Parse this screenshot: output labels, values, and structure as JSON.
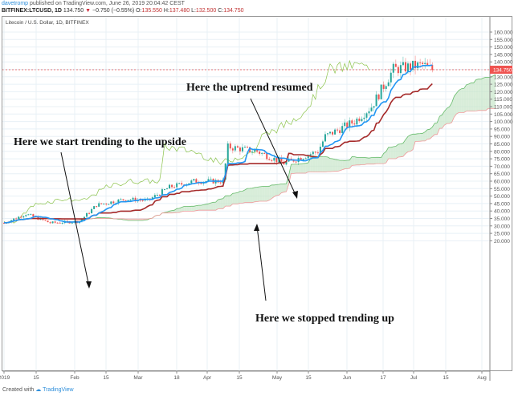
{
  "header": {
    "author": "davetromp",
    "published_text": "published on TradingView.com, June 26, 2019 20:04:42 CEST",
    "symbol": "BITFINEX:LTCUSD, 1D",
    "last_price": "134.750",
    "change": "−0.750 (−0.55%)",
    "open_label": "O:",
    "open": "135.550",
    "high_label": "H:",
    "high": "137.480",
    "low_label": "L:",
    "low": "132.500",
    "close_label": "C:",
    "close": "134.750"
  },
  "legend": {
    "title": "Litecoin / U.S. Dollar, 1D, BITFINEX"
  },
  "annotations": {
    "a1": "Here we start trending to the upside",
    "a2": "Here the uptrend resumed",
    "a3": "Here we stopped trending up"
  },
  "footer": {
    "prefix": "Created with",
    "brand": "TradingView"
  },
  "colors": {
    "up": "#26a69a",
    "down": "#ef5350",
    "conversion": "#2196f3",
    "base": "#a52a2a",
    "lagging": "#8bc34a",
    "cloud_bull": "#c8e6c9",
    "cloud_bear": "#ffcdd2",
    "price_line": "#ef5350",
    "price_tag": "#ef5350"
  },
  "chart_data": {
    "type": "candlestick",
    "title": "Litecoin / U.S. Dollar, 1D, BITFINEX",
    "indicator": "Ichimoku Cloud",
    "xlabel": "",
    "ylabel": "Price (USD)",
    "ylim": [
      20,
      160
    ],
    "y_ticks": [
      "160.000",
      "155.000",
      "150.000",
      "145.000",
      "140.000",
      "135.000",
      "130.000",
      "125.000",
      "120.000",
      "115.000",
      "110.000",
      "105.000",
      "100.000",
      "95.000",
      "90.000",
      "85.000",
      "80.000",
      "75.000",
      "70.000",
      "65.000",
      "60.000",
      "55.000",
      "50.000",
      "45.000",
      "40.000",
      "35.000",
      "30.000",
      "25.000",
      "20.000"
    ],
    "x_ticks": [
      "2019",
      "15",
      "Feb",
      "15",
      "Mar",
      "18",
      "Apr",
      "15",
      "May",
      "15",
      "Jun",
      "17",
      "Jul",
      "15",
      "Aug"
    ],
    "current_price": 134.75,
    "grid": true,
    "approx_close_path": [
      {
        "date": "2019-01-01",
        "close": 32
      },
      {
        "date": "2019-01-10",
        "close": 38
      },
      {
        "date": "2019-01-20",
        "close": 32
      },
      {
        "date": "2019-02-01",
        "close": 33
      },
      {
        "date": "2019-02-08",
        "close": 44
      },
      {
        "date": "2019-02-20",
        "close": 48
      },
      {
        "date": "2019-03-01",
        "close": 47
      },
      {
        "date": "2019-03-10",
        "close": 56
      },
      {
        "date": "2019-03-20",
        "close": 60
      },
      {
        "date": "2019-04-01",
        "close": 60
      },
      {
        "date": "2019-04-03",
        "close": 83
      },
      {
        "date": "2019-04-15",
        "close": 80
      },
      {
        "date": "2019-04-26",
        "close": 72
      },
      {
        "date": "2019-05-10",
        "close": 80
      },
      {
        "date": "2019-05-13",
        "close": 90
      },
      {
        "date": "2019-05-25",
        "close": 100
      },
      {
        "date": "2019-06-01",
        "close": 110
      },
      {
        "date": "2019-06-10",
        "close": 135
      },
      {
        "date": "2019-06-22",
        "close": 138
      },
      {
        "date": "2019-06-26",
        "close": 134.75
      }
    ]
  }
}
